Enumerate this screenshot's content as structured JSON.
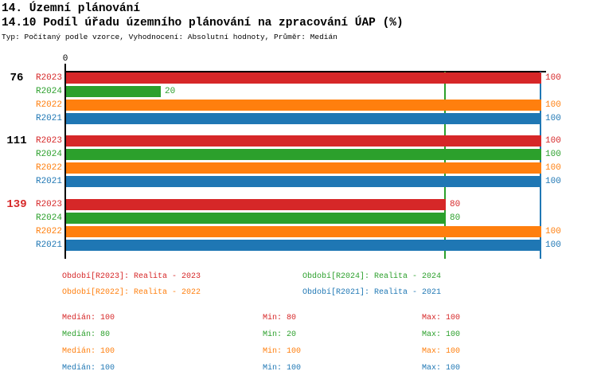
{
  "header": {
    "title": "14. Územní plánování",
    "subtitle": "14.10 Podíl úřadu územního plánování na zpracování ÚAP (%)",
    "meta": "Typ: Počítaný podle vzorce, Vyhodnocení: Absolutní hodnoty, Průměr: Medián"
  },
  "colors": {
    "R2023": "#d62728",
    "R2024": "#2ca02c",
    "R2022": "#ff7f0e",
    "R2021": "#1f77b4",
    "axis": "#000000",
    "background": "#ffffff"
  },
  "chart_data": {
    "type": "bar",
    "orientation": "horizontal",
    "xlim": [
      0,
      100
    ],
    "x_tick_labels": [
      "0"
    ],
    "grid": false,
    "series_order": [
      "R2023",
      "R2024",
      "R2022",
      "R2021"
    ],
    "groups": [
      {
        "label": "76",
        "label_color": "#000000",
        "values": {
          "R2023": 100,
          "R2024": 20,
          "R2022": 100,
          "R2021": 100
        }
      },
      {
        "label": "111",
        "label_color": "#000000",
        "values": {
          "R2023": 100,
          "R2024": 100,
          "R2022": 100,
          "R2021": 100
        }
      },
      {
        "label": "139",
        "label_color": "#d62728",
        "values": {
          "R2023": 80,
          "R2024": 80,
          "R2022": 100,
          "R2021": 100
        }
      }
    ],
    "median_lines": [
      {
        "value": 80,
        "color": "#2ca02c"
      },
      {
        "value": 100,
        "color": "#1f77b4"
      }
    ],
    "stats": {
      "R2023": {
        "median": 100,
        "min": 80,
        "max": 100
      },
      "R2024": {
        "median": 80,
        "min": 20,
        "max": 100
      },
      "R2022": {
        "median": 100,
        "min": 100,
        "max": 100
      },
      "R2021": {
        "median": 100,
        "min": 100,
        "max": 100
      }
    }
  },
  "legend": {
    "rows": [
      [
        {
          "series": "R2023",
          "text": "Období[R2023]: Realita - 2023"
        },
        {
          "series": "R2024",
          "text": "Období[R2024]: Realita - 2024"
        }
      ],
      [
        {
          "series": "R2022",
          "text": "Období[R2022]: Realita - 2022"
        },
        {
          "series": "R2021",
          "text": "Období[R2021]: Realita - 2021"
        }
      ]
    ]
  },
  "stats_panel": {
    "rows": [
      {
        "series": "R2023",
        "cells": [
          "Medián: 100",
          "Min: 80",
          "Max: 100"
        ]
      },
      {
        "series": "R2024",
        "cells": [
          "Medián: 80",
          "Min: 20",
          "Max: 100"
        ]
      },
      {
        "series": "R2022",
        "cells": [
          "Medián: 100",
          "Min: 100",
          "Max: 100"
        ]
      },
      {
        "series": "R2021",
        "cells": [
          "Medián: 100",
          "Min: 100",
          "Max: 100"
        ]
      }
    ]
  }
}
